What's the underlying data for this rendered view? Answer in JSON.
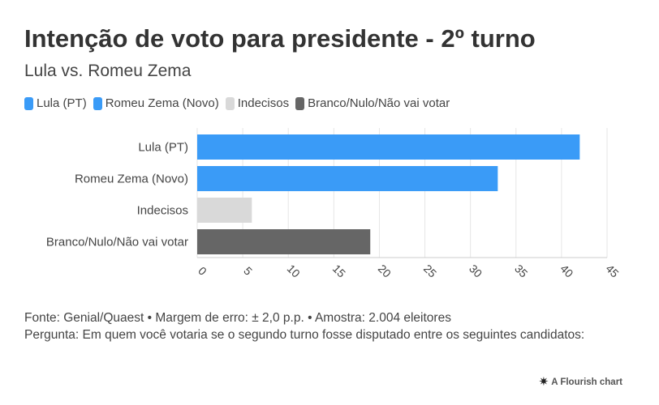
{
  "title": "Intenção de voto para presidente - 2º turno",
  "subtitle": "Lula vs. Romeu Zema",
  "legend": [
    {
      "label": "Lula (PT)",
      "color": "#3a9bf7"
    },
    {
      "label": "Romeu Zema (Novo)",
      "color": "#3a9bf7"
    },
    {
      "label": "Indecisos",
      "color": "#d9d9d9"
    },
    {
      "label": "Branco/Nulo/Não vai votar",
      "color": "#666666"
    }
  ],
  "chart_data": {
    "type": "bar",
    "orientation": "horizontal",
    "categories": [
      "Lula (PT)",
      "Romeu Zema (Novo)",
      "Indecisos",
      "Branco/Nulo/Não vai votar"
    ],
    "values": [
      42,
      33,
      6,
      19
    ],
    "colors": [
      "#3a9bf7",
      "#3a9bf7",
      "#d9d9d9",
      "#666666"
    ],
    "xlim": [
      0,
      45
    ],
    "xticks": [
      0,
      5,
      10,
      15,
      20,
      25,
      30,
      35,
      40,
      45
    ],
    "grid": true
  },
  "footer": {
    "source": "Fonte: Genial/Quaest • Margem de erro: ± 2,0 p.p. • Amostra: 2.004 eleitores",
    "question": "Pergunta: Em quem você votaria se o segundo turno fosse disputado entre os seguintes candidatos:"
  },
  "credit": "A Flourish chart",
  "credit_icon": "flourish-asterisk-icon"
}
